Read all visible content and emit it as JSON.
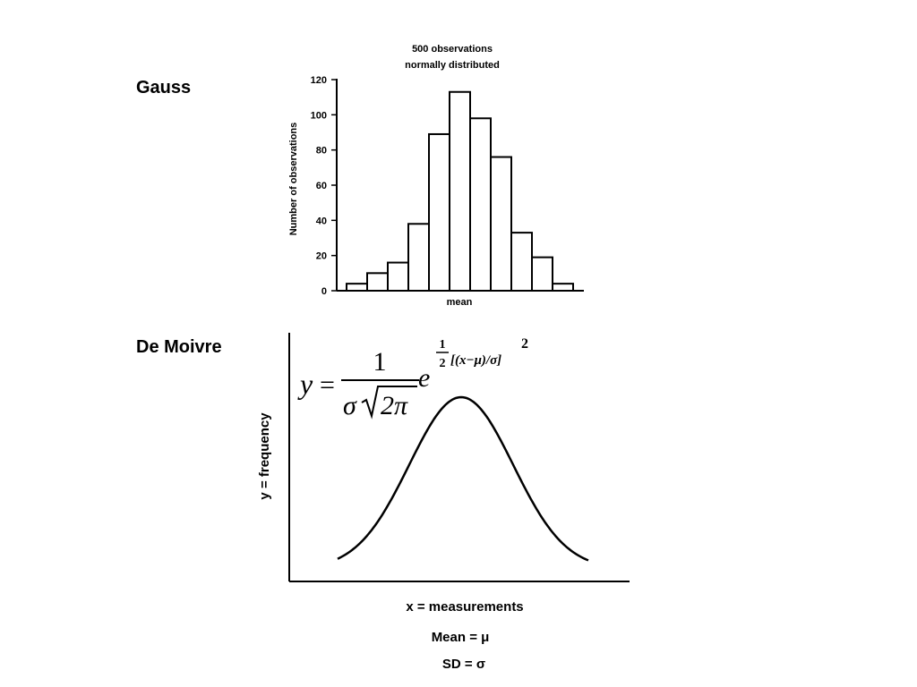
{
  "labels": {
    "gauss": "Gauss",
    "de_moivre": "De Moivre"
  },
  "chart_data": [
    {
      "type": "bar",
      "title": "500 observations",
      "subtitle": "normally distributed",
      "xlabel": "mean",
      "ylabel": "Number of observations",
      "ylim": [
        0,
        120
      ],
      "yticks": [
        0,
        20,
        40,
        60,
        80,
        100,
        120
      ],
      "values": [
        4,
        10,
        16,
        38,
        89,
        113,
        98,
        76,
        33,
        19,
        4
      ],
      "grid": false,
      "bar_fill": "#ffffff",
      "bar_stroke": "#000000"
    },
    {
      "type": "line",
      "formula": {
        "y": "y",
        "equals": "=",
        "numerator": "1",
        "sigma": "σ",
        "two_pi": "2π",
        "e": "e",
        "exp_frac_num": "1",
        "exp_frac_den": "2",
        "exp_body": "[(x−μ)/σ]",
        "exp_power": "2"
      },
      "xlabel": "x = measurements",
      "ylabel": "y = frequency",
      "annotations": [
        "Mean = μ",
        "SD = σ"
      ],
      "curve": "normal",
      "grid": false
    }
  ]
}
